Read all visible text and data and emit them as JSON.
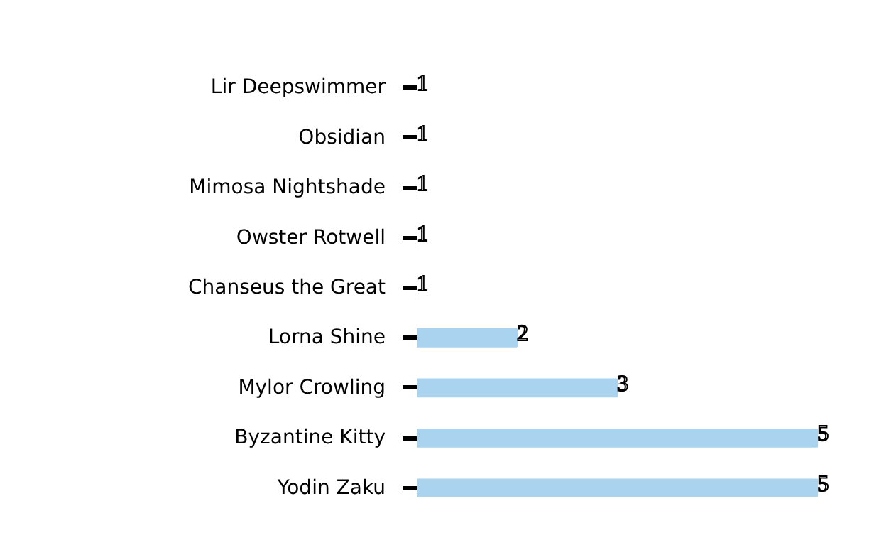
{
  "chart_data": {
    "type": "bar",
    "orientation": "horizontal",
    "categories": [
      "Lir Deepswimmer",
      "Obsidian",
      "Mimosa Nightshade",
      "Owster Rotwell",
      "Chanseus the Great",
      "Lorna Shine",
      "Mylor Crowling",
      "Byzantine Kitty",
      "Yodin Zaku"
    ],
    "values": [
      1,
      1,
      1,
      1,
      1,
      2,
      3,
      5,
      5
    ],
    "color": "#a9d3ee",
    "xlim": [
      1,
      5
    ],
    "data_labels": true,
    "grid": false,
    "tick_labels": "y"
  }
}
